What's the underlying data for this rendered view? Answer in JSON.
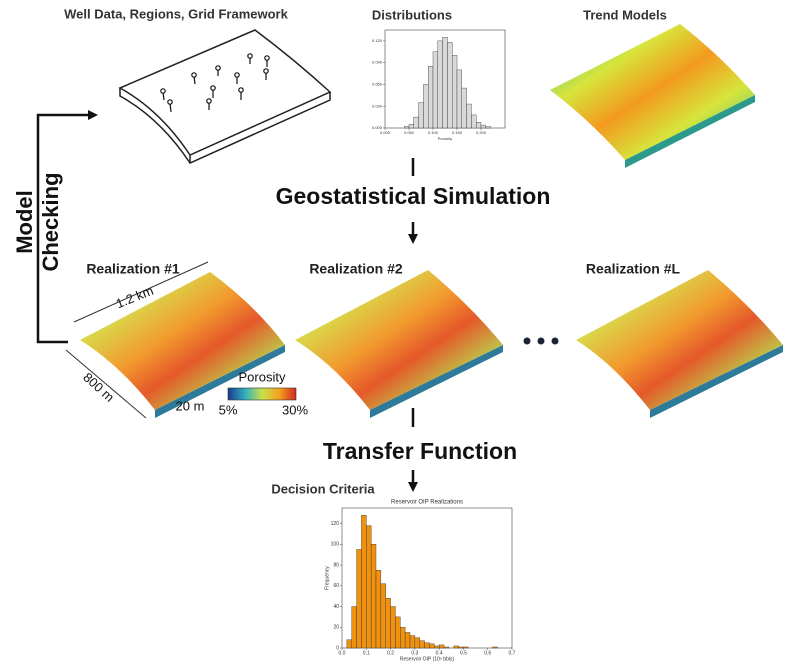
{
  "panels": {
    "well_data": "Well Data, Regions, Grid Framework",
    "distributions": "Distributions",
    "trend_models": "Trend Models"
  },
  "steps": {
    "simulation": "Geostatistical Simulation",
    "transfer": "Transfer Function",
    "decision": "Decision Criteria"
  },
  "feedback": [
    "Model",
    "Checking"
  ],
  "realizations": [
    "Realization #1",
    "Realization #2",
    "Realization #L"
  ],
  "annotations": {
    "length": "1.2 km",
    "width": "800 m",
    "thickness": "20 m"
  },
  "colorbar": {
    "title": "Porosity",
    "min_label": "5%",
    "max_label": "30%"
  },
  "distribution_chart": {
    "type": "histogram",
    "xlabel": "Porosity",
    "color": "#d9d9d9",
    "bins": [
      0.04,
      0.05,
      0.06,
      0.07,
      0.08,
      0.09,
      0.1,
      0.11,
      0.12,
      0.13,
      0.14,
      0.15,
      0.16,
      0.17,
      0.18,
      0.19,
      0.2,
      0.21,
      0.22
    ],
    "values": [
      0.002,
      0.005,
      0.015,
      0.035,
      0.06,
      0.085,
      0.105,
      0.12,
      0.125,
      0.118,
      0.1,
      0.08,
      0.055,
      0.033,
      0.018,
      0.008,
      0.004,
      0.002
    ],
    "xlim": [
      0,
      0.25
    ],
    "ylim": [
      0,
      0.135
    ],
    "xticks": [
      {
        "value": 0,
        "label": "0.000"
      },
      {
        "value": 0.05,
        "label": "0.050"
      },
      {
        "value": 0.1,
        "label": "0.100"
      },
      {
        "value": 0.15,
        "label": "0.150"
      },
      {
        "value": 0.2,
        "label": "0.200"
      }
    ],
    "yticks": [
      {
        "value": 0,
        "label": "0.000"
      },
      {
        "value": 0.03,
        "label": "0.030"
      },
      {
        "value": 0.06,
        "label": "0.060"
      },
      {
        "value": 0.09,
        "label": "0.090"
      },
      {
        "value": 0.12,
        "label": "0.120"
      }
    ]
  },
  "decision_chart": {
    "type": "histogram",
    "title": "Reservoir OIP Realizations",
    "xlabel": "Reservoir OIP (10⁶ bbls)",
    "ylabel": "Frequency",
    "color": "#f0920f",
    "bins": [
      0,
      0.02,
      0.04,
      0.06,
      0.08,
      0.1,
      0.12,
      0.14,
      0.16,
      0.18,
      0.2,
      0.22,
      0.24,
      0.26,
      0.28,
      0.3,
      0.32,
      0.34,
      0.36,
      0.38,
      0.4,
      0.42,
      0.44,
      0.46,
      0.48,
      0.5,
      0.52,
      0.54,
      0.56,
      0.58,
      0.6,
      0.62,
      0.64,
      0.66
    ],
    "values": [
      0,
      8,
      40,
      95,
      128,
      118,
      100,
      75,
      62,
      48,
      40,
      30,
      20,
      15,
      12,
      10,
      7,
      5,
      4,
      2,
      3,
      1,
      0,
      2,
      1,
      1,
      0,
      0,
      0,
      0,
      0,
      1,
      0
    ],
    "xlim": [
      0,
      0.7
    ],
    "ylim": [
      0,
      135
    ],
    "xticks": [
      {
        "value": 0,
        "label": "0.0"
      },
      0.1,
      0.2,
      0.3,
      0.4,
      0.5,
      0.6,
      0.7
    ],
    "yticks": [
      0,
      20,
      40,
      60,
      80,
      100,
      120
    ]
  }
}
